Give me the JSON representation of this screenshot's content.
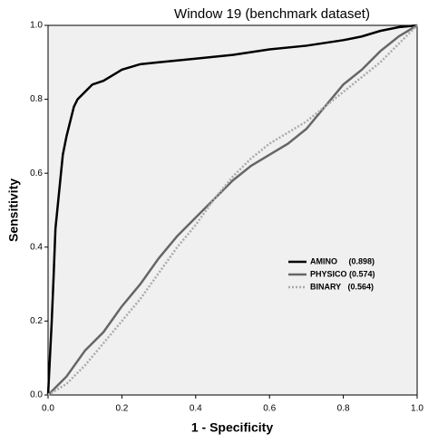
{
  "chart_data": {
    "type": "line",
    "title": "Window 19 (benchmark dataset)",
    "x_label": "1 - Specificity",
    "y_label": "Sensitivity",
    "xlim": [
      0,
      1
    ],
    "ylim": [
      0,
      1
    ],
    "xticks": [
      {
        "value": 0,
        "label": "0.0"
      },
      0.2,
      0.4,
      0.6,
      0.8,
      {
        "value": 1,
        "label": "1.0"
      }
    ],
    "yticks": [
      {
        "value": 0,
        "label": "0.0"
      },
      0.2,
      0.4,
      0.6,
      0.8,
      {
        "value": 1,
        "label": "1.0"
      }
    ],
    "legend": "lower right",
    "series": [
      {
        "name": "AMINO     (0.898)",
        "color": "#000000",
        "style": "solid",
        "x": [
          0,
          0.005,
          0.01,
          0.015,
          0.02,
          0.03,
          0.04,
          0.05,
          0.06,
          0.07,
          0.08,
          0.1,
          0.12,
          0.15,
          0.2,
          0.25,
          0.3,
          0.4,
          0.5,
          0.6,
          0.7,
          0.8,
          0.85,
          0.9,
          0.95,
          1
        ],
        "values": [
          0,
          0.1,
          0.2,
          0.32,
          0.45,
          0.55,
          0.65,
          0.7,
          0.74,
          0.78,
          0.8,
          0.82,
          0.84,
          0.85,
          0.88,
          0.895,
          0.9,
          0.91,
          0.92,
          0.935,
          0.945,
          0.96,
          0.97,
          0.985,
          0.995,
          1
        ]
      },
      {
        "name": "PHYSICO (0.574)",
        "color": "#666666",
        "style": "solid",
        "x": [
          0,
          0.05,
          0.1,
          0.15,
          0.2,
          0.25,
          0.3,
          0.35,
          0.4,
          0.45,
          0.5,
          0.55,
          0.6,
          0.65,
          0.7,
          0.75,
          0.8,
          0.85,
          0.9,
          0.95,
          1
        ],
        "values": [
          0,
          0.05,
          0.12,
          0.17,
          0.24,
          0.3,
          0.37,
          0.43,
          0.48,
          0.53,
          0.58,
          0.62,
          0.65,
          0.68,
          0.72,
          0.78,
          0.84,
          0.88,
          0.93,
          0.97,
          1
        ]
      },
      {
        "name": "BINARY   (0.564)",
        "color": "#aaaaaa",
        "style": "dotted",
        "x": [
          0,
          0.05,
          0.1,
          0.15,
          0.2,
          0.25,
          0.3,
          0.35,
          0.4,
          0.45,
          0.5,
          0.55,
          0.6,
          0.65,
          0.7,
          0.75,
          0.8,
          0.85,
          0.9,
          0.95,
          1
        ],
        "values": [
          0,
          0.03,
          0.08,
          0.14,
          0.2,
          0.26,
          0.33,
          0.4,
          0.46,
          0.53,
          0.59,
          0.64,
          0.68,
          0.71,
          0.74,
          0.78,
          0.82,
          0.86,
          0.9,
          0.95,
          1
        ]
      }
    ]
  }
}
